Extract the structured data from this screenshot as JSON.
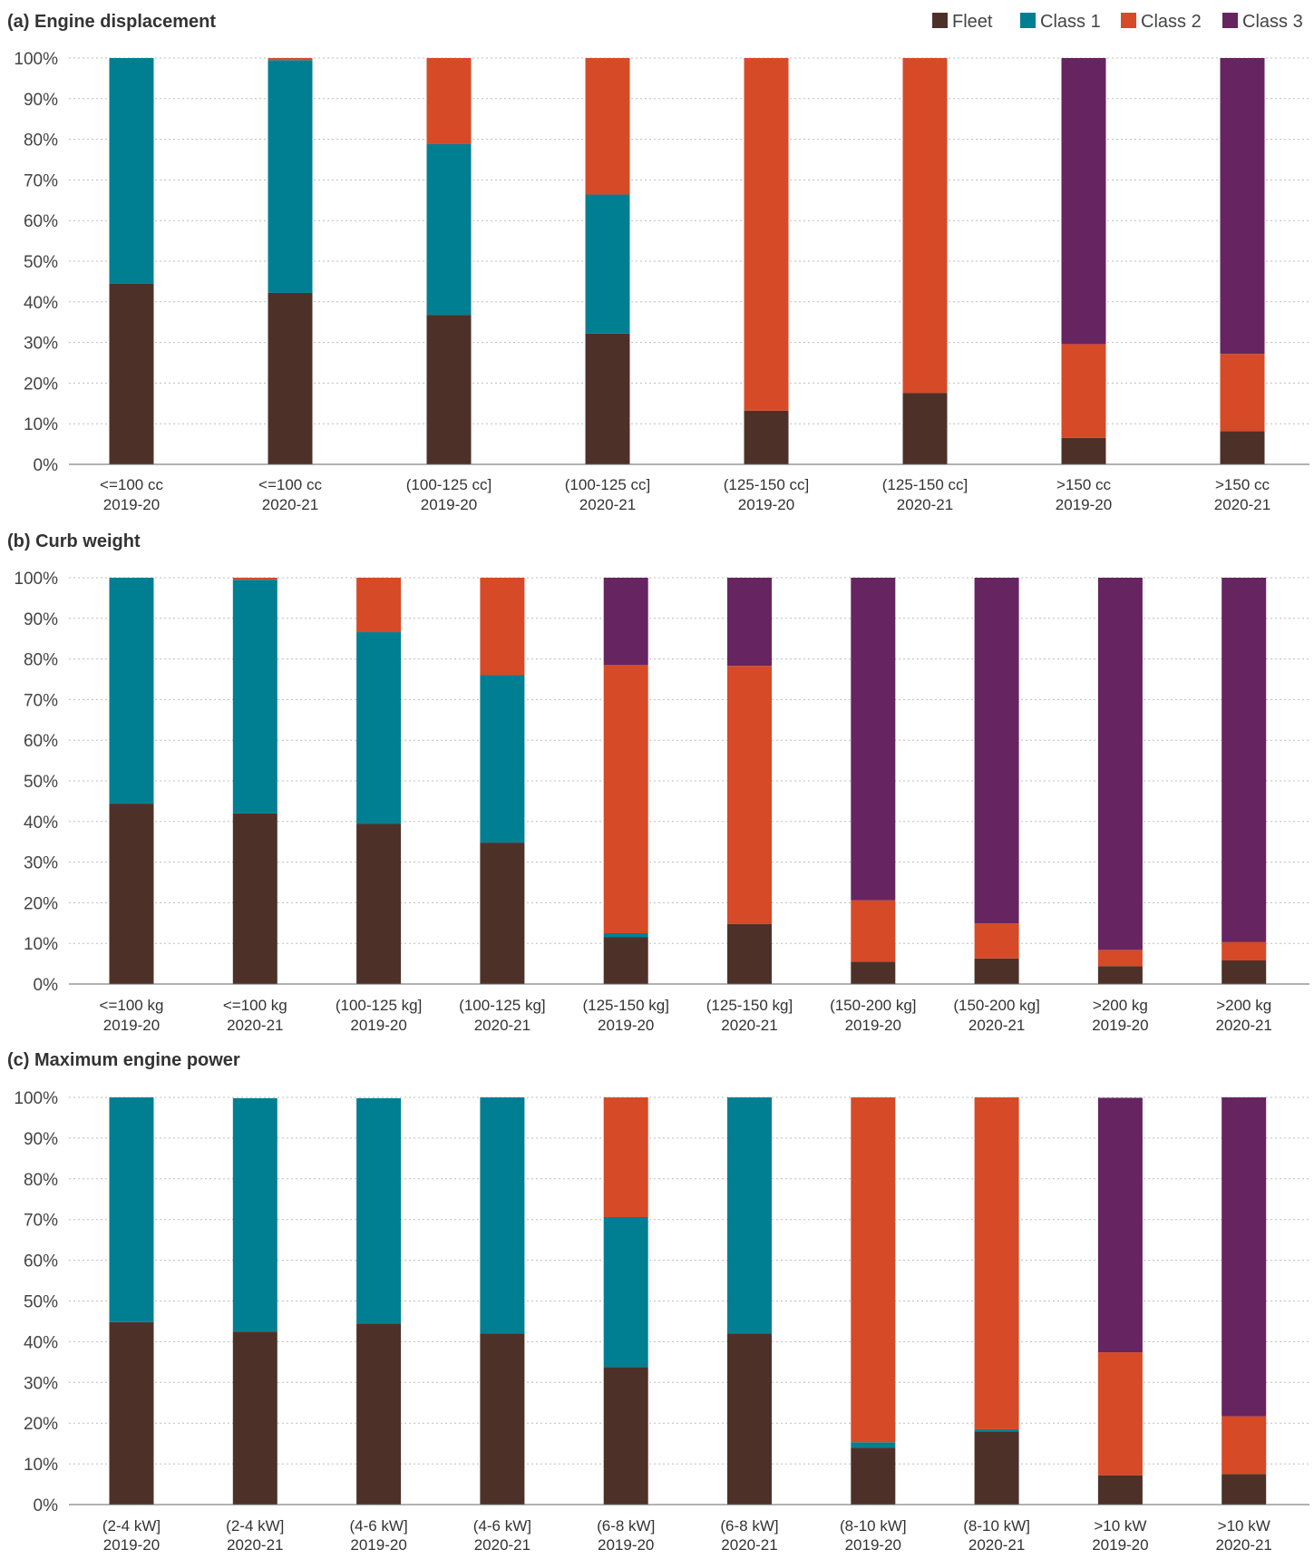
{
  "legend": [
    {
      "name": "Fleet",
      "color": "#4d3128"
    },
    {
      "name": "Class 1",
      "color": "#007f93"
    },
    {
      "name": "Class 2",
      "color": "#d64a27"
    },
    {
      "name": "Class 3",
      "color": "#662461"
    }
  ],
  "chart_data": [
    {
      "type": "bar",
      "stacked": true,
      "title": "(a) Engine displacement",
      "ylim": [
        0,
        100
      ],
      "yticks": [
        "0%",
        "10%",
        "20%",
        "30%",
        "40%",
        "50%",
        "60%",
        "70%",
        "80%",
        "90%",
        "100%"
      ],
      "grid": true,
      "categories": [
        [
          "<=100 cc",
          "2019-20"
        ],
        [
          "<=100 cc",
          "2020-21"
        ],
        [
          "(100-125 cc]",
          "2019-20"
        ],
        [
          "(100-125 cc]",
          "2020-21"
        ],
        [
          "(125-150 cc]",
          "2019-20"
        ],
        [
          "(125-150 cc]",
          "2020-21"
        ],
        [
          ">150 cc",
          "2019-20"
        ],
        [
          ">150 cc",
          "2020-21"
        ]
      ],
      "series": [
        {
          "name": "Fleet",
          "values": [
            44.5,
            42.2,
            36.8,
            32.2,
            13.2,
            17.6,
            6.5,
            8.2
          ]
        },
        {
          "name": "Class 1",
          "values": [
            55.5,
            57.3,
            42.0,
            34.2,
            0,
            0,
            0,
            0
          ]
        },
        {
          "name": "Class 2",
          "values": [
            0,
            0.5,
            21.2,
            33.6,
            86.8,
            82.4,
            23.1,
            19.0
          ]
        },
        {
          "name": "Class 3",
          "values": [
            0,
            0,
            0,
            0,
            0,
            0,
            70.4,
            72.8
          ]
        }
      ]
    },
    {
      "type": "bar",
      "stacked": true,
      "title": "(b) Curb weight",
      "ylim": [
        0,
        100
      ],
      "yticks": [
        "0%",
        "10%",
        "20%",
        "30%",
        "40%",
        "50%",
        "60%",
        "70%",
        "80%",
        "90%",
        "100%"
      ],
      "grid": true,
      "categories": [
        [
          "<=100 kg",
          "2019-20"
        ],
        [
          "<=100 kg",
          "2020-21"
        ],
        [
          "(100-125 kg]",
          "2019-20"
        ],
        [
          "(100-125 kg]",
          "2020-21"
        ],
        [
          "(125-150 kg]",
          "2019-20"
        ],
        [
          "(125-150 kg]",
          "2020-21"
        ],
        [
          "(150-200 kg]",
          "2019-20"
        ],
        [
          "(150-200 kg]",
          "2020-21"
        ],
        [
          ">200 kg",
          "2019-20"
        ],
        [
          ">200 kg",
          "2020-21"
        ]
      ],
      "series": [
        {
          "name": "Fleet",
          "values": [
            44.4,
            42.0,
            39.4,
            34.8,
            11.5,
            14.8,
            5.5,
            6.3,
            4.4,
            5.8
          ]
        },
        {
          "name": "Class 1",
          "values": [
            55.6,
            57.5,
            47.2,
            41.2,
            1.0,
            0,
            0,
            0,
            0,
            0
          ]
        },
        {
          "name": "Class 2",
          "values": [
            0,
            0.5,
            13.4,
            24.0,
            66.0,
            63.5,
            15.1,
            8.6,
            4.0,
            4.5
          ]
        },
        {
          "name": "Class 3",
          "values": [
            0,
            0,
            0,
            0,
            21.5,
            21.7,
            79.4,
            85.1,
            91.6,
            89.7
          ]
        }
      ]
    },
    {
      "type": "bar",
      "stacked": true,
      "title": "(c) Maximum engine power",
      "ylim": [
        0,
        100
      ],
      "yticks": [
        "0%",
        "10%",
        "20%",
        "30%",
        "40%",
        "50%",
        "60%",
        "70%",
        "80%",
        "90%",
        "100%"
      ],
      "grid": true,
      "categories": [
        [
          "(2-4 kW]",
          "2019-20"
        ],
        [
          "(2-4 kW]",
          "2020-21"
        ],
        [
          "(4-6 kW]",
          "2019-20"
        ],
        [
          "(4-6 kW]",
          "2020-21"
        ],
        [
          "(6-8 kW]",
          "2019-20"
        ],
        [
          "(6-8 kW]",
          "2020-21"
        ],
        [
          "(8-10 kW]",
          "2019-20"
        ],
        [
          "(8-10 kW]",
          "2020-21"
        ],
        [
          ">10 kW",
          "2019-20"
        ],
        [
          ">10 kW",
          "2020-21"
        ]
      ],
      "series": [
        {
          "name": "Fleet",
          "values": [
            44.8,
            42.5,
            44.5,
            42.0,
            33.8,
            42.0,
            14.0,
            18.0,
            7.2,
            7.5
          ]
        },
        {
          "name": "Class 1",
          "values": [
            55.2,
            57.3,
            55.3,
            58.0,
            36.8,
            58.0,
            1.3,
            0.5,
            0,
            0
          ]
        },
        {
          "name": "Class 2",
          "values": [
            0,
            0,
            0,
            0,
            29.4,
            0,
            84.7,
            81.5,
            30.2,
            14.2
          ]
        },
        {
          "name": "Class 3",
          "values": [
            0,
            0,
            0,
            0,
            0,
            0,
            0,
            0,
            62.5,
            78.3
          ]
        }
      ]
    }
  ]
}
